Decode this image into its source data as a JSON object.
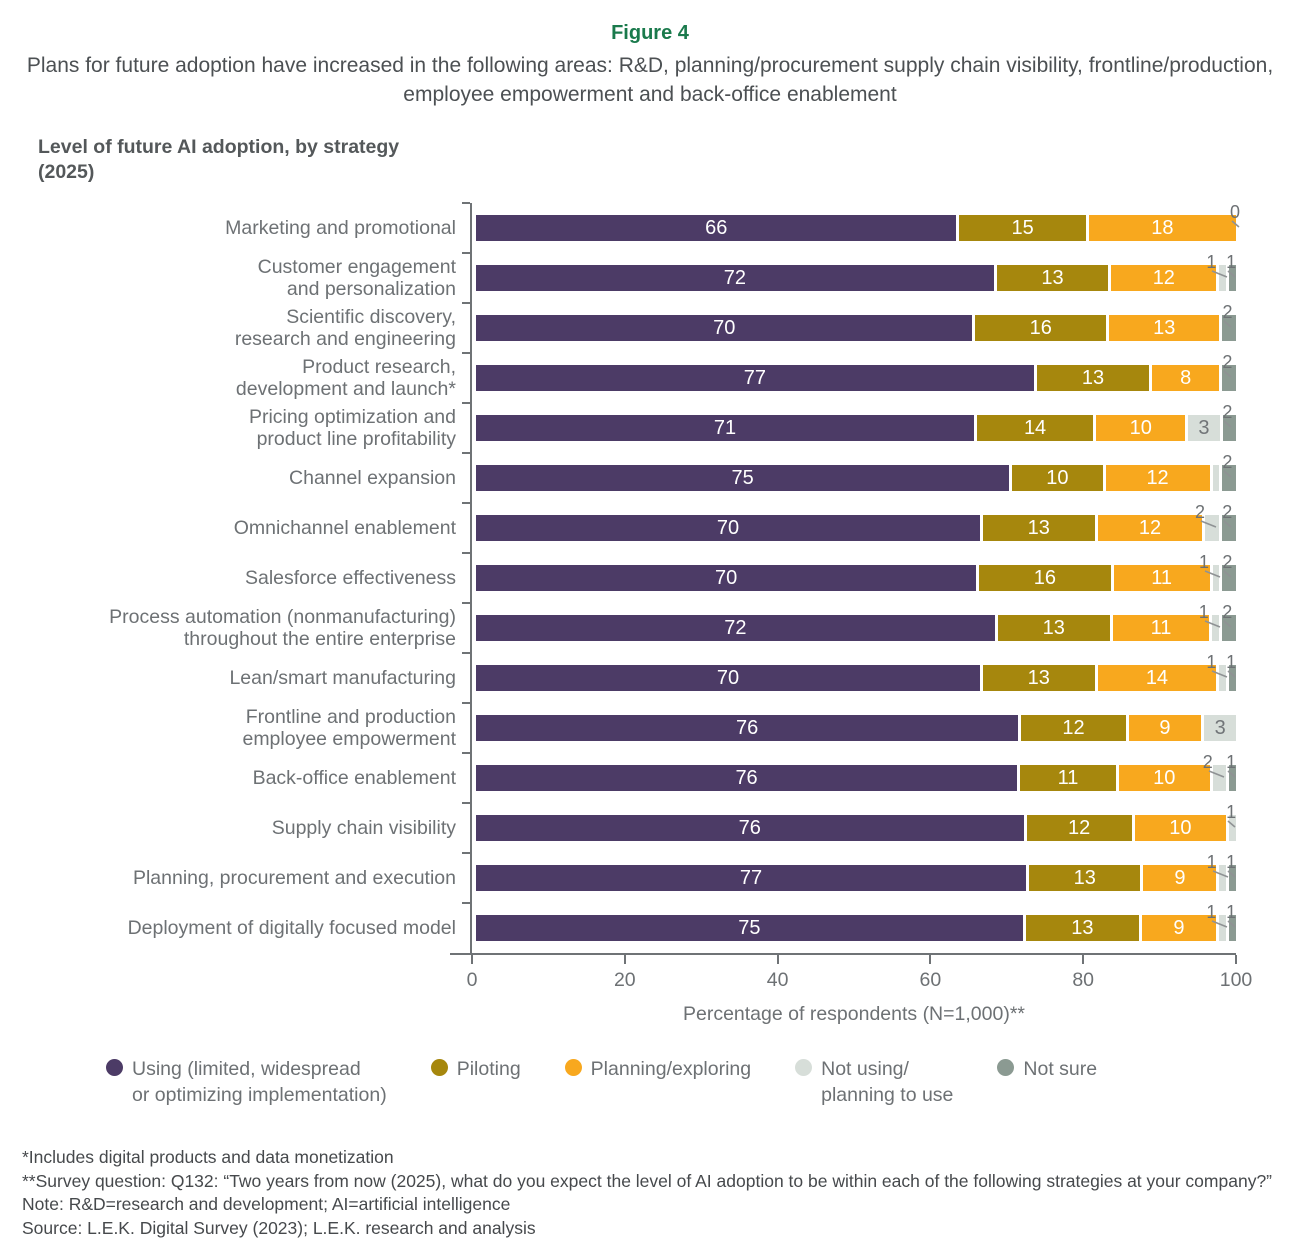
{
  "figure": {
    "label": "Figure 4",
    "title": "Plans for future adoption have increased in the following areas: R&D, planning/procurement supply chain visibility, frontline/production, employee empowerment and back-office enablement",
    "chart_heading": "Level of future AI adoption, by strategy\n(2025)"
  },
  "colors": {
    "figure_label_green": "#1a7a4c",
    "using": "#4c3b66",
    "piloting": "#a6870d",
    "planning": "#f8a81e",
    "not_using": "#d7ded9",
    "not_sure": "#8b9a92",
    "axis": "#6f7376",
    "label_gray": "#6d7174"
  },
  "chart_data": {
    "type": "bar",
    "orientation": "horizontal-stacked",
    "title": "Level of future AI adoption, by strategy (2025)",
    "xlabel": "Percentage of respondents (N=1,000)**",
    "xlim": [
      0,
      100
    ],
    "x_ticks": [
      0,
      20,
      40,
      60,
      80,
      100
    ],
    "grid": false,
    "legend_position": "bottom",
    "categories": [
      "Marketing and promotional",
      "Customer engagement\nand personalization",
      "Scientific discovery,\nresearch and engineering",
      "Product research,\ndevelopment and launch*",
      "Pricing optimization and\nproduct line profitability",
      "Channel expansion",
      "Omnichannel enablement",
      "Salesforce effectiveness",
      "Process automation (nonmanufacturing)\nthroughout the entire enterprise",
      "Lean/smart manufacturing",
      "Frontline and production\nemployee empowerment",
      "Back-office enablement",
      "Supply chain visibility",
      "Planning, procurement and execution",
      "Deployment of digitally focused model"
    ],
    "series": [
      {
        "key": "using",
        "name": "Using (limited, widespread or optimizing implementation)",
        "color": "#4c3b66",
        "values": [
          66,
          72,
          70,
          77,
          71,
          75,
          70,
          70,
          72,
          70,
          76,
          76,
          76,
          77,
          75
        ]
      },
      {
        "key": "piloting",
        "name": "Piloting",
        "color": "#a6870d",
        "values": [
          15,
          13,
          16,
          13,
          14,
          10,
          13,
          16,
          13,
          13,
          12,
          11,
          12,
          13,
          13
        ]
      },
      {
        "key": "planning",
        "name": "Planning/exploring",
        "color": "#f8a81e",
        "values": [
          18,
          12,
          13,
          8,
          10,
          12,
          12,
          11,
          11,
          14,
          9,
          10,
          10,
          9,
          9
        ]
      },
      {
        "key": "not_using",
        "name": "Not using/planning to use",
        "color": "#d7ded9",
        "values": [
          0,
          1,
          0,
          0,
          3,
          1,
          2,
          1,
          1,
          1,
          3,
          2,
          1,
          1,
          1
        ]
      },
      {
        "key": "not_sure",
        "name": "Not sure",
        "color": "#8b9a92",
        "values": [
          0,
          1,
          2,
          2,
          2,
          2,
          2,
          2,
          2,
          1,
          0,
          1,
          0,
          1,
          1
        ]
      }
    ],
    "callouts": [
      [
        {
          "text": "0",
          "seg": "not_using"
        }
      ],
      [
        {
          "text": "1",
          "seg": "not_using"
        },
        {
          "text": "1",
          "seg": "not_sure"
        }
      ],
      [
        {
          "text": "2",
          "seg": "not_sure"
        }
      ],
      [
        {
          "text": "2",
          "seg": "not_sure"
        }
      ],
      [
        {
          "text": "2",
          "seg": "not_sure"
        }
      ],
      [
        {
          "text": "2",
          "seg": "not_sure"
        }
      ],
      [
        {
          "text": "2",
          "seg": "not_using"
        },
        {
          "text": "2",
          "seg": "not_sure"
        }
      ],
      [
        {
          "text": "1",
          "seg": "not_using"
        },
        {
          "text": "2",
          "seg": "not_sure"
        }
      ],
      [
        {
          "text": "1",
          "seg": "not_using"
        },
        {
          "text": "2",
          "seg": "not_sure"
        }
      ],
      [
        {
          "text": "1",
          "seg": "not_using"
        },
        {
          "text": "1",
          "seg": "not_sure"
        }
      ],
      [],
      [
        {
          "text": "2",
          "seg": "not_using"
        },
        {
          "text": "1",
          "seg": "not_sure"
        }
      ],
      [
        {
          "text": "1",
          "seg": "not_using"
        }
      ],
      [
        {
          "text": "1",
          "seg": "not_using"
        },
        {
          "text": "1",
          "seg": "not_sure"
        }
      ],
      [
        {
          "text": "1",
          "seg": "not_using"
        },
        {
          "text": "1",
          "seg": "not_sure"
        }
      ]
    ]
  },
  "legend": [
    {
      "key": "using",
      "label": "Using (limited, widespread\nor optimizing implementation)",
      "color": "#4c3b66"
    },
    {
      "key": "piloting",
      "label": "Piloting",
      "color": "#a6870d"
    },
    {
      "key": "planning",
      "label": "Planning/exploring",
      "color": "#f8a81e"
    },
    {
      "key": "not_using",
      "label": "Not using/\nplanning to use",
      "color": "#d7ded9"
    },
    {
      "key": "not_sure",
      "label": "Not sure",
      "color": "#8b9a92"
    }
  ],
  "footnotes": [
    "*Includes digital products and data monetization",
    "**Survey question: Q132: “Two years from now (2025), what do you expect the level of AI adoption to be within each of the following strategies at your company?”",
    "Note: R&D=research and development; AI=artificial intelligence",
    "Source: L.E.K. Digital Survey (2023); L.E.K. research and analysis"
  ]
}
